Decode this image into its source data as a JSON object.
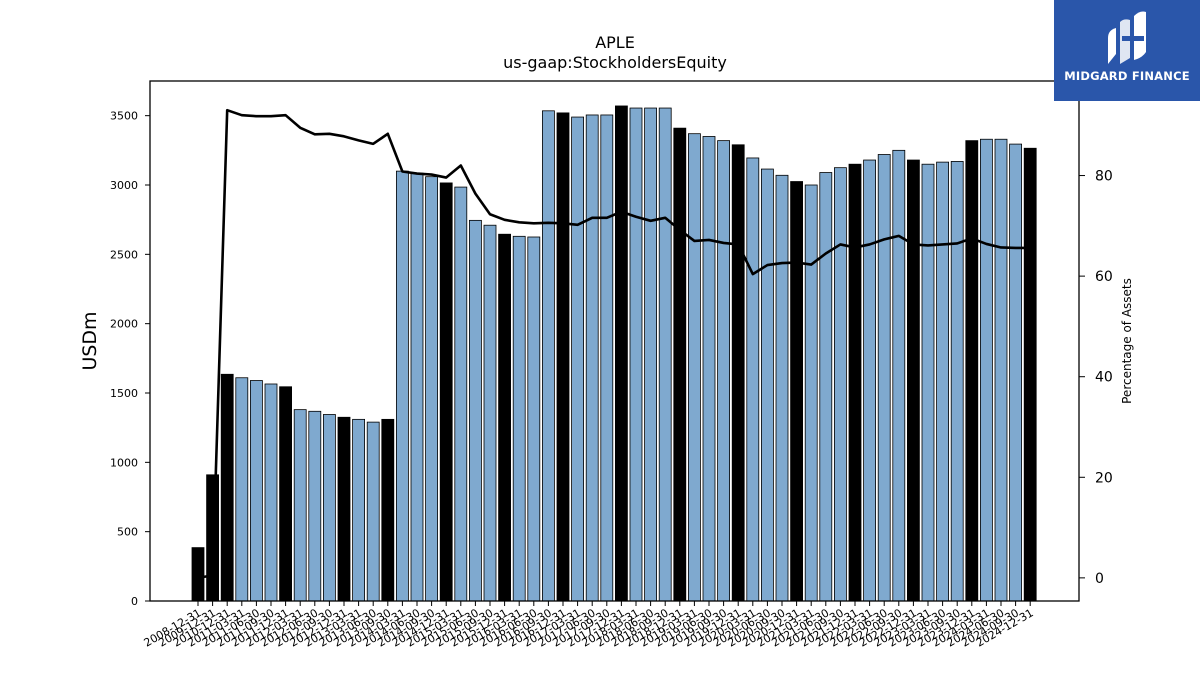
{
  "logo": {
    "text": "MIDGARD FINANCE"
  },
  "chart_data": {
    "type": "bar",
    "title": "APLE",
    "subtitle": "us-gaap:StockholdersEquity",
    "ylabel": "USDm",
    "ylabel_right": "Percentage of Assets",
    "ylim": [
      0,
      3750
    ],
    "ylim_right": [
      -4.6,
      98.8
    ],
    "yticks": [
      0,
      500,
      1000,
      1500,
      2000,
      2500,
      3000,
      3500
    ],
    "yticks_right": [
      0,
      20,
      40,
      60,
      80
    ],
    "grid": false,
    "colors": {
      "quarter": "#7fa9cf",
      "year_end": "#000000",
      "line": "#000000"
    },
    "categories": [
      "2008-12-31",
      "2009-12-31",
      "2010-12-31",
      "2011-03-31",
      "2011-06-30",
      "2011-09-30",
      "2011-12-31",
      "2012-03-31",
      "2012-06-30",
      "2012-09-30",
      "2012-12-31",
      "2013-03-31",
      "2013-06-30",
      "2013-09-30",
      "2014-03-31",
      "2014-06-30",
      "2014-09-30",
      "2014-12-31",
      "2015-03-31",
      "2015-06-30",
      "2015-09-30",
      "2015-12-31",
      "2016-03-31",
      "2016-06-30",
      "2016-09-30",
      "2016-12-31",
      "2017-03-31",
      "2017-06-30",
      "2017-09-30",
      "2017-12-31",
      "2018-03-31",
      "2018-06-30",
      "2018-09-30",
      "2018-12-31",
      "2019-03-31",
      "2019-06-30",
      "2019-09-30",
      "2019-12-31",
      "2020-03-31",
      "2020-06-30",
      "2020-09-30",
      "2020-12-31",
      "2021-03-31",
      "2021-06-30",
      "2021-09-30",
      "2021-12-31",
      "2022-03-31",
      "2022-06-30",
      "2022-09-30",
      "2022-12-31",
      "2023-03-31",
      "2023-06-30",
      "2023-09-30",
      "2023-12-31",
      "2024-03-31",
      "2024-06-30",
      "2024-09-30",
      "2024-12-31"
    ],
    "values": [
      385,
      910,
      1635,
      1610,
      1590,
      1565,
      1545,
      1380,
      1368,
      1345,
      1325,
      1310,
      1290,
      1310,
      3100,
      3085,
      3060,
      3015,
      2985,
      2745,
      2710,
      2645,
      2630,
      2625,
      3535,
      3520,
      3490,
      3505,
      3505,
      3570,
      3555,
      3555,
      3555,
      3410,
      3370,
      3350,
      3320,
      3290,
      3195,
      3115,
      3070,
      3025,
      3000,
      3090,
      3125,
      3150,
      3180,
      3220,
      3250,
      3180,
      3150,
      3165,
      3170,
      3320,
      3330,
      3330,
      3295,
      3265
    ],
    "year_end": [
      true,
      true,
      true,
      false,
      false,
      false,
      true,
      false,
      false,
      false,
      true,
      false,
      false,
      true,
      false,
      false,
      false,
      true,
      false,
      false,
      false,
      true,
      false,
      false,
      false,
      true,
      false,
      false,
      false,
      true,
      false,
      false,
      false,
      true,
      false,
      false,
      false,
      true,
      false,
      false,
      false,
      true,
      false,
      false,
      false,
      true,
      false,
      false,
      false,
      true,
      false,
      false,
      false,
      true,
      false,
      false,
      false,
      true
    ],
    "series": [
      {
        "name": "Percentage of Assets",
        "type": "line",
        "values": [
          0,
          0.5,
          93,
          92,
          91.8,
          91.8,
          92,
          89.5,
          88.2,
          88.3,
          87.8,
          87,
          86.3,
          88.3,
          80.8,
          80.4,
          80.2,
          79.6,
          82,
          76.4,
          72.3,
          71.2,
          70.7,
          70.5,
          70.6,
          70.5,
          70.2,
          71.6,
          71.6,
          72.8,
          71.8,
          71,
          71.6,
          69.2,
          67,
          67.2,
          66.6,
          66.3,
          60.4,
          62.2,
          62.6,
          62.7,
          62.3,
          64.5,
          66.3,
          65.7,
          66.3,
          67.3,
          68,
          66.3,
          66.1,
          66.3,
          66.5,
          67.5,
          66.4,
          65.7,
          65.6,
          65.6
        ]
      }
    ]
  }
}
